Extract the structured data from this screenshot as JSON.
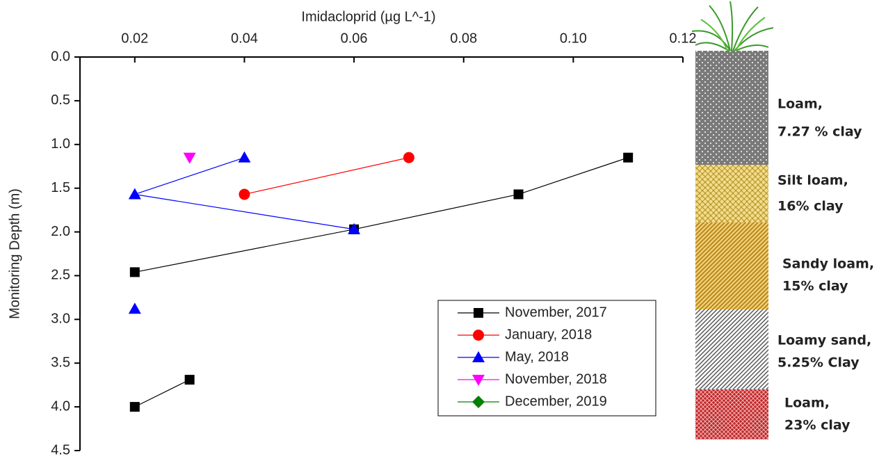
{
  "chart_data": {
    "type": "line",
    "x_label": "Imidacloprid (µg L^-1)",
    "y_label": "Monitoring Depth (m)",
    "xlim": [
      0.01,
      0.12
    ],
    "xticks": [
      0.02,
      0.04,
      0.06,
      0.08,
      {
        "value": 0.1,
        "label": "0.10"
      },
      0.12
    ],
    "ylim": [
      0,
      4.5
    ],
    "y_inverted": true,
    "yticks": [
      {
        "value": 0,
        "label": "0.0"
      },
      0.5,
      {
        "value": 1,
        "label": "1.0"
      },
      1.5,
      {
        "value": 2,
        "label": "2.0"
      },
      2.5,
      {
        "value": 3,
        "label": "3.0"
      },
      3.5,
      {
        "value": 4,
        "label": "4.0"
      },
      4.5
    ],
    "legend": "lower right",
    "series": [
      {
        "name": "November, 2017",
        "color": "#000000",
        "marker": "square",
        "x": [
          0.11,
          0.09,
          0.06,
          0.02,
          null,
          0.03,
          0.02
        ],
        "values": [
          1.15,
          1.57,
          1.97,
          2.46,
          null,
          3.69,
          4.0
        ]
      },
      {
        "name": "January, 2018",
        "color": "#ff0000",
        "marker": "circle",
        "x": [
          0.07,
          0.04
        ],
        "values": [
          1.15,
          1.57
        ]
      },
      {
        "name": "May, 2018",
        "color": "#0000ff",
        "marker": "triangle-up",
        "x": [
          0.04,
          0.02,
          0.06,
          null,
          0.02
        ],
        "values": [
          1.15,
          1.57,
          1.97,
          null,
          2.88
        ]
      },
      {
        "name": "November, 2018",
        "color": "#ff00ff",
        "marker": "triangle-down",
        "x": [
          0.03
        ],
        "values": [
          1.15
        ]
      },
      {
        "name": "December, 2019",
        "color": "#008000",
        "marker": "diamond",
        "x": [],
        "values": []
      }
    ],
    "annotations": [
      [
        "Loam,",
        "7.27 % clay"
      ],
      [
        "Silt loam,",
        "16% clay"
      ],
      [
        "Sandy loam,",
        "15% clay"
      ],
      [
        "Loamy sand,",
        "5.25% Clay"
      ],
      [
        "Loam,",
        "23% clay"
      ]
    ]
  }
}
